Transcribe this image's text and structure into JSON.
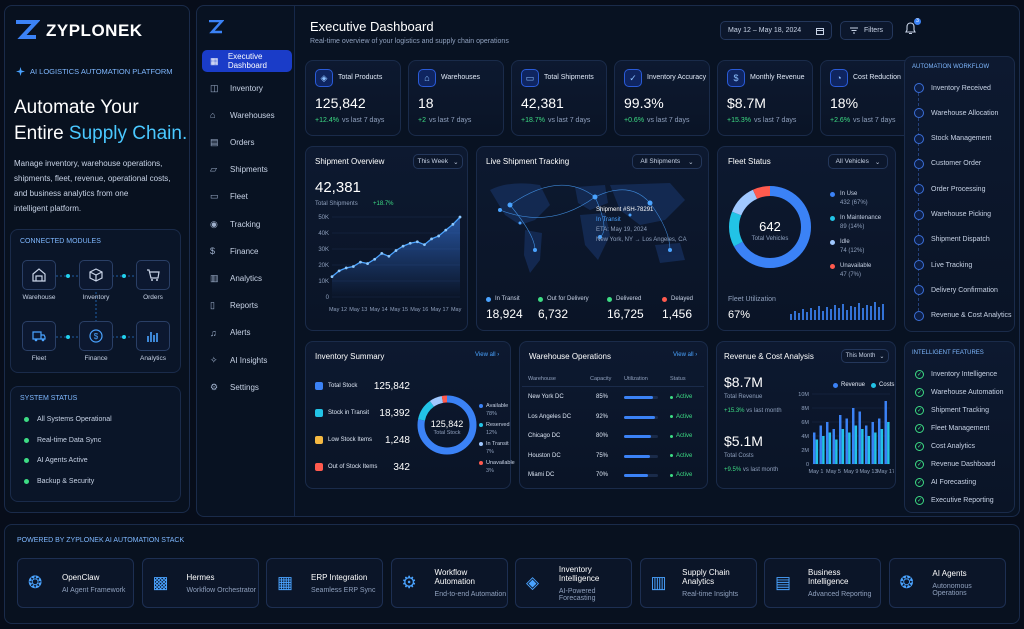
{
  "brand": {
    "name": "ZYPLONEK",
    "tagline": "AI LOGISTICS AUTOMATION PLATFORM"
  },
  "hero": {
    "line1": "Automate Your",
    "line2a": "Entire ",
    "line2b": "Supply Chain.",
    "desc": [
      "Manage inventory, warehouse operations,",
      "shipments, fleet, revenue, operational costs,",
      "and business analytics from one",
      "intelligent platform."
    ]
  },
  "modules": {
    "title": "CONNECTED MODULES",
    "items": [
      "Warehouse",
      "Inventory",
      "Orders",
      "Fleet",
      "Finance",
      "Analytics"
    ]
  },
  "system": {
    "title": "SYSTEM STATUS",
    "items": [
      "All Systems Operational",
      "Real-time Data Sync",
      "AI Agents Active",
      "Backup & Security"
    ]
  },
  "nav": [
    "Executive Dashboard",
    "Inventory",
    "Warehouses",
    "Orders",
    "Shipments",
    "Fleet",
    "Tracking",
    "Finance",
    "Analytics",
    "Reports",
    "Alerts",
    "AI Insights",
    "Settings"
  ],
  "header": {
    "title": "Executive Dashboard",
    "subtitle": "Real-time overview of your logistics and supply chain operations",
    "date_range": "May 12 – May 18, 2024",
    "filters": "Filters",
    "notif_count": "3"
  },
  "kpis": [
    {
      "label": "Total Products",
      "value": "125,842",
      "delta": "+12.4%",
      "suffix": "vs last 7 days"
    },
    {
      "label": "Warehouses",
      "value": "18",
      "delta": "+2",
      "suffix": "vs last 7 days"
    },
    {
      "label": "Total Shipments",
      "value": "42,381",
      "delta": "+18.7%",
      "suffix": "vs last 7 days"
    },
    {
      "label": "Inventory Accuracy",
      "value": "99.3%",
      "delta": "+0.6%",
      "suffix": "vs last 7 days"
    },
    {
      "label": "Monthly Revenue",
      "value": "$8.7M",
      "delta": "+15.3%",
      "suffix": "vs last 7 days"
    },
    {
      "label": "Cost Reduction",
      "value": "18%",
      "delta": "+2.6%",
      "suffix": "vs last 7 days"
    }
  ],
  "shipment_overview": {
    "title": "Shipment Overview",
    "range": "This Week",
    "total": "42,381",
    "total_label": "Total Shipments",
    "delta": "+18.7%"
  },
  "chart_data": {
    "type": "area",
    "categories": [
      "May 12",
      "May 13",
      "May 14",
      "May 15",
      "May 16",
      "May 17",
      "May 18"
    ],
    "x": [
      0,
      1,
      2,
      3,
      4,
      5,
      6,
      7,
      8,
      9,
      10,
      11,
      12,
      13,
      14,
      15,
      16,
      17,
      18
    ],
    "values": [
      14,
      18,
      20,
      21,
      24,
      23,
      26,
      30,
      28,
      32,
      35,
      37,
      38,
      36,
      40,
      42,
      46,
      50,
      55
    ],
    "yticks": [
      "50K",
      "40K",
      "30K",
      "20K",
      "10K",
      "0"
    ],
    "ylim": [
      0,
      60
    ]
  },
  "live": {
    "title": "Live Shipment Tracking",
    "filter": "All Shipments",
    "popup": {
      "id": "Shipment #SH-78291",
      "status": "In Transit",
      "eta": "ETA: May 19, 2024",
      "route": "New York, NY → Los Angeles, CA"
    },
    "stats": [
      {
        "label": "In Transit",
        "value": "18,924",
        "color": "#4aa3ff"
      },
      {
        "label": "Out for Delivery",
        "value": "6,732",
        "color": "#3ddc84"
      },
      {
        "label": "Delivered",
        "value": "16,725",
        "color": "#3ddc84"
      },
      {
        "label": "Delayed",
        "value": "1,456",
        "color": "#ff5a4e"
      }
    ]
  },
  "fleet": {
    "title": "Fleet Status",
    "filter": "All Vehicles",
    "total": "642",
    "total_label": "Total Vehicles",
    "legend": [
      {
        "label": "In Use",
        "value": "432 (67%)",
        "color": "#3b82f6",
        "pct": 67
      },
      {
        "label": "In Maintenance",
        "value": "89 (14%)",
        "color": "#22c3e6",
        "pct": 14
      },
      {
        "label": "Idle",
        "value": "74 (12%)",
        "color": "#a0c8ff",
        "pct": 12
      },
      {
        "label": "Unavailable",
        "value": "47 (7%)",
        "color": "#ff5a4e",
        "pct": 7
      }
    ],
    "util_label": "Fleet Utilization",
    "util": "67%"
  },
  "inventory": {
    "title": "Inventory Summary",
    "view_all": "View all",
    "rows": [
      {
        "label": "Total Stock",
        "value": "125,842",
        "color": "#3b82f6"
      },
      {
        "label": "Stock in Transit",
        "value": "18,392",
        "color": "#22c3e6"
      },
      {
        "label": "Low Stock Items",
        "value": "1,248",
        "color": "#f5b942"
      },
      {
        "label": "Out of Stock Items",
        "value": "342",
        "color": "#ff5a4e"
      }
    ],
    "donut_value": "125,842",
    "donut_label": "Total Stock",
    "legend": [
      {
        "label": "Available",
        "pct": "78%",
        "color": "#3b82f6"
      },
      {
        "label": "Reserved",
        "pct": "12%",
        "color": "#22c3e6"
      },
      {
        "label": "In Transit",
        "pct": "7%",
        "color": "#a0c8ff"
      },
      {
        "label": "Unavailable",
        "pct": "3%",
        "color": "#ff5a4e"
      }
    ]
  },
  "warehouse_ops": {
    "title": "Warehouse Operations",
    "view_all": "View all",
    "headers": [
      "Warehouse",
      "Capacity",
      "Utilization",
      "Status"
    ],
    "rows": [
      {
        "name": "New York DC",
        "cap": "85%",
        "util": 85,
        "status": "Active"
      },
      {
        "name": "Los Angeles DC",
        "cap": "92%",
        "util": 92,
        "status": "Active"
      },
      {
        "name": "Chicago DC",
        "cap": "80%",
        "util": 80,
        "status": "Active"
      },
      {
        "name": "Houston DC",
        "cap": "75%",
        "util": 75,
        "status": "Active"
      },
      {
        "name": "Miami DC",
        "cap": "70%",
        "util": 70,
        "status": "Active"
      }
    ]
  },
  "revenue": {
    "title": "Revenue & Cost Analysis",
    "range": "This Month",
    "rev": "$8.7M",
    "rev_label": "Total Revenue",
    "rev_delta": "+15.3%",
    "rev_suffix": "vs last month",
    "cost": "$5.1M",
    "cost_label": "Total Costs",
    "cost_delta": "+9.5%",
    "cost_suffix": "vs last month",
    "legend": [
      "Revenue",
      "Costs"
    ],
    "yticks": [
      "10M",
      "8M",
      "6M",
      "4M",
      "2M",
      "0"
    ],
    "xticks": [
      "May 1",
      "May 5",
      "May 9",
      "May 13",
      "May 17"
    ],
    "chart": {
      "revenue": [
        4.5,
        5.5,
        6,
        5,
        7,
        6.5,
        8,
        7.5,
        5.5,
        6,
        6.5,
        9
      ],
      "costs": [
        3.5,
        4,
        4.5,
        3.5,
        5,
        4.5,
        5.5,
        5,
        4,
        4.5,
        5,
        6
      ]
    }
  },
  "workflow": {
    "title": "AUTOMATION WORKFLOW",
    "items": [
      "Inventory Received",
      "Warehouse Allocation",
      "Stock Management",
      "Customer Order",
      "Order Processing",
      "Warehouse Picking",
      "Shipment Dispatch",
      "Live Tracking",
      "Delivery Confirmation",
      "Revenue & Cost Analytics"
    ]
  },
  "features": {
    "title": "INTELLIGENT FEATURES",
    "items": [
      "Inventory Intelligence",
      "Warehouse Automation",
      "Shipment Tracking",
      "Fleet Management",
      "Cost Analytics",
      "Revenue Dashboard",
      "AI Forecasting",
      "Executive Reporting"
    ]
  },
  "stack": {
    "title": "POWERED BY ZYPLONEK AI AUTOMATION STACK",
    "items": [
      {
        "name": "OpenClaw",
        "sub": "AI Agent Framework"
      },
      {
        "name": "Hermes",
        "sub": "Workflow Orchestrator"
      },
      {
        "name": "ERP Integration",
        "sub": "Seamless ERP Sync"
      },
      {
        "name": "Workflow Automation",
        "sub": "End-to-end Automation"
      },
      {
        "name": "Inventory Intelligence",
        "sub": "AI-Powered Forecasting"
      },
      {
        "name": "Supply Chain Analytics",
        "sub": "Real-time Insights"
      },
      {
        "name": "Business Intelligence",
        "sub": "Advanced Reporting"
      },
      {
        "name": "AI Agents",
        "sub": "Autonomous Operations"
      }
    ]
  }
}
